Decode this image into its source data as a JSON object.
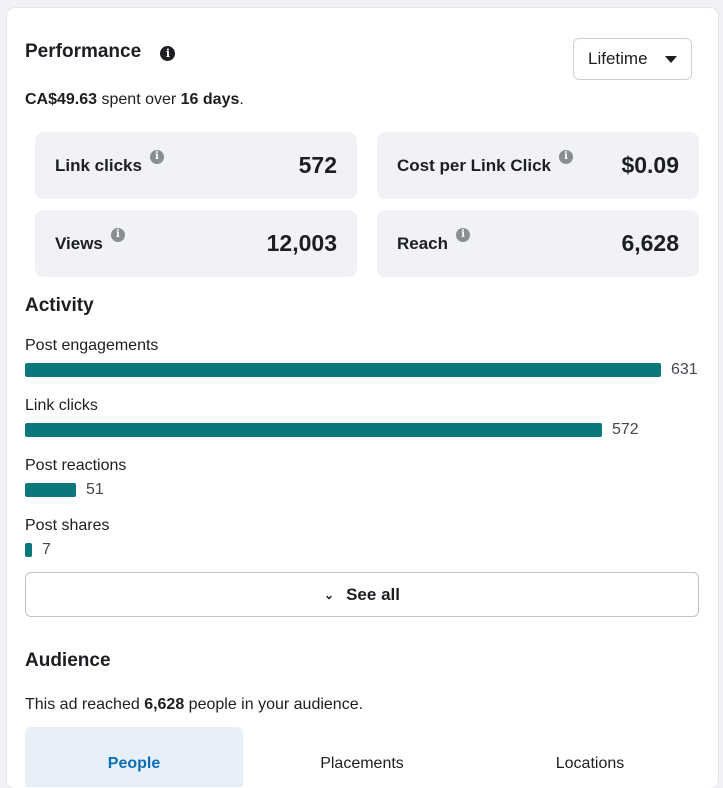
{
  "performance": {
    "title": "Performance",
    "info_icon": "info-icon",
    "dropdown_value": "Lifetime",
    "spent_amount": "CA$49.63",
    "spent_mid": " spent over ",
    "spent_days": "16 days",
    "spent_end": "."
  },
  "metrics": [
    {
      "label": "Link clicks",
      "value": "572"
    },
    {
      "label": "Cost per Link Click",
      "value": "$0.09"
    },
    {
      "label": "Views",
      "value": "12,003"
    },
    {
      "label": "Reach",
      "value": "6,628"
    }
  ],
  "activity": {
    "title": "Activity",
    "items": [
      {
        "label": "Post engagements",
        "value": 631
      },
      {
        "label": "Link clicks",
        "value": 572
      },
      {
        "label": "Post reactions",
        "value": 51
      },
      {
        "label": "Post shares",
        "value": 7
      }
    ],
    "bar_color": "#08787c",
    "see_all_label": "See all"
  },
  "audience": {
    "title": "Audience",
    "text_start": "This ad reached ",
    "reach": "6,628",
    "text_end": " people in your audience.",
    "tabs": [
      {
        "label": "People",
        "active": true
      },
      {
        "label": "Placements",
        "active": false
      },
      {
        "label": "Locations",
        "active": false
      }
    ]
  }
}
